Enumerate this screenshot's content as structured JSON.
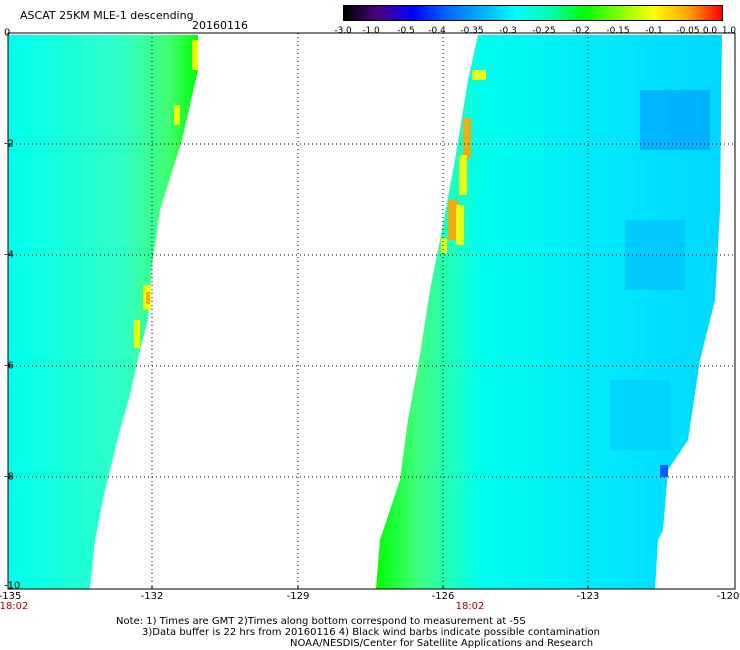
{
  "header": {
    "title": "ASCAT 25KM MLE-1 descending",
    "date": "20160116"
  },
  "colorbar": {
    "labels": [
      "-3.0",
      "-1.0",
      "-0.5",
      "-0.4",
      "-0.35",
      "-0.3",
      "-0.25",
      "-0.2",
      "-0.15",
      "-0.1",
      "-0.05",
      "0.0",
      "1.0"
    ],
    "colors": [
      "#000000",
      "#4b0082",
      "#0000ff",
      "#0066ff",
      "#00b0ff",
      "#00ffff",
      "#00ffb0",
      "#00ff00",
      "#80ff00",
      "#ffff00",
      "#ffa500",
      "#ff0000"
    ]
  },
  "axes": {
    "x_ticks": [
      "-135",
      "-132",
      "-129",
      "-126",
      "-123",
      "-120"
    ],
    "x_range": [
      -135,
      -120
    ],
    "y_ticks": [
      "0",
      "-2",
      "-4",
      "-6",
      "-8",
      "-10"
    ],
    "y_range": [
      -10,
      0
    ]
  },
  "swaths": {
    "left_time": "18:02",
    "right_time": "18:02"
  },
  "notes": {
    "line1": "Note: 1) Times are GMT 2)Times along bottom correspond to measurement at -5S",
    "line2": "3)Data buffer is 22 hrs from 20160116 4) Black wind barbs indicate possible contamination",
    "line3": "NOAA/NESDIS/Center for Satellite Applications and Research"
  },
  "colors": {
    "base": "#00ffee",
    "green": "#00ff00",
    "yellow": "#ffff00",
    "orange": "#ffa500",
    "blue": "#0090ff",
    "time_label": "#b00000"
  }
}
